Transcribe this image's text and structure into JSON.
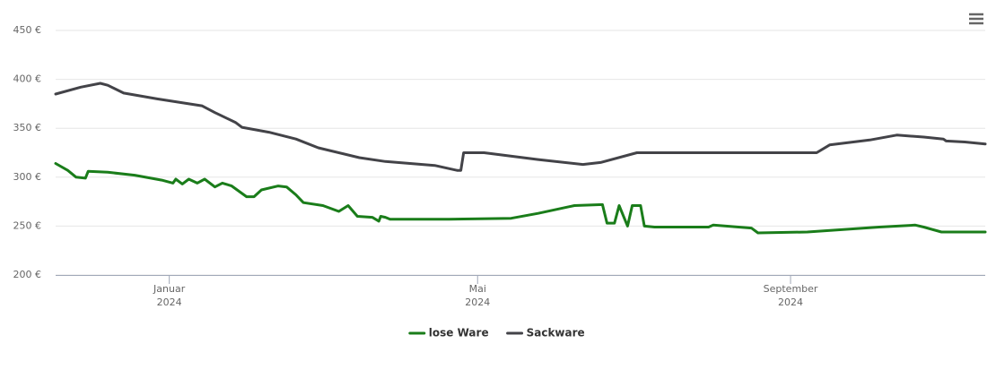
{
  "chart_data": {
    "type": "line",
    "xlim": [
      2023.878,
      2024.876
    ],
    "xticks": [
      {
        "value": 2024.0,
        "label": [
          "Januar",
          "2024"
        ]
      },
      {
        "value": 2024.331,
        "label": [
          "Mai",
          "2024"
        ]
      },
      {
        "value": 2024.667,
        "label": [
          "September",
          "2024"
        ]
      }
    ],
    "ylim": [
      200,
      450
    ],
    "yticks": [
      {
        "value": 200,
        "label": "200 €"
      },
      {
        "value": 250,
        "label": "250 €"
      },
      {
        "value": 300,
        "label": "300 €"
      },
      {
        "value": 350,
        "label": "350 €"
      },
      {
        "value": 400,
        "label": "400 €"
      },
      {
        "value": 450,
        "label": "450 €"
      }
    ],
    "grid": true,
    "legend": "bottom",
    "series": [
      {
        "name": "lose Ware",
        "color": "#1a7d1a",
        "x": [
          2023.878,
          2023.891,
          2023.9,
          2023.91,
          2023.913,
          2023.934,
          2023.963,
          2023.992,
          2024.004,
          2024.007,
          2024.014,
          2024.021,
          2024.03,
          2024.038,
          2024.049,
          2024.057,
          2024.067,
          2024.083,
          2024.091,
          2024.099,
          2024.117,
          2024.126,
          2024.136,
          2024.144,
          2024.165,
          2024.182,
          2024.192,
          2024.202,
          2024.218,
          2024.225,
          2024.227,
          2024.232,
          2024.237,
          2024.3,
          2024.367,
          2024.396,
          2024.435,
          2024.465,
          2024.47,
          2024.478,
          2024.483,
          2024.492,
          2024.497,
          2024.506,
          2024.51,
          2024.521,
          2024.579,
          2024.584,
          2024.625,
          2024.632,
          2024.685,
          2024.762,
          2024.801,
          2024.81,
          2024.829,
          2024.876
        ],
        "values": [
          314,
          307,
          300,
          299,
          306,
          305,
          302,
          297,
          294,
          298,
          293,
          298,
          294,
          298,
          290,
          294,
          291,
          280,
          280,
          287,
          291,
          290,
          282,
          274,
          271,
          265,
          271,
          260,
          259,
          255,
          260,
          259,
          257,
          257,
          258,
          263,
          271,
          272,
          253,
          253,
          271,
          250,
          271,
          271,
          250,
          249,
          249,
          251,
          248,
          243,
          244,
          249,
          251,
          249,
          244,
          244
        ]
      },
      {
        "name": "Sackware",
        "color": "#434348",
        "x": [
          2023.878,
          2023.905,
          2023.926,
          2023.934,
          2023.951,
          2023.987,
          2024.035,
          2024.049,
          2024.071,
          2024.078,
          2024.107,
          2024.136,
          2024.16,
          2024.204,
          2024.232,
          2024.285,
          2024.309,
          2024.313,
          2024.316,
          2024.338,
          2024.396,
          2024.444,
          2024.463,
          2024.502,
          2024.589,
          2024.695,
          2024.709,
          2024.752,
          2024.781,
          2024.81,
          2024.831,
          2024.834,
          2024.854,
          2024.876
        ],
        "values": [
          385,
          392,
          396,
          394,
          386,
          380,
          373,
          366,
          356,
          351,
          346,
          339,
          330,
          320,
          316,
          312,
          307,
          307,
          325,
          325,
          318,
          313,
          315,
          325,
          325,
          325,
          333,
          338,
          343,
          341,
          339,
          337,
          336,
          334
        ]
      }
    ]
  }
}
